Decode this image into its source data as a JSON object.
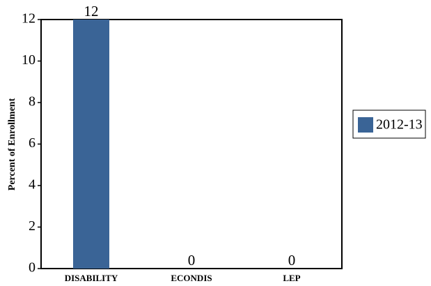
{
  "chart_data": {
    "type": "bar",
    "title": "",
    "xlabel": "",
    "ylabel": "Percent of Enrollment",
    "categories": [
      "DISABILITY",
      "ECONDIS",
      "LEP"
    ],
    "series": [
      {
        "name": "2012-13",
        "values": [
          12,
          0,
          0
        ],
        "color": "#3a6496"
      }
    ],
    "ylim": [
      0,
      12
    ],
    "yticks": [
      0,
      2,
      4,
      6,
      8,
      10,
      12
    ],
    "data_labels": [
      "12",
      "0",
      "0"
    ],
    "grid": false,
    "legend_position": "right"
  }
}
